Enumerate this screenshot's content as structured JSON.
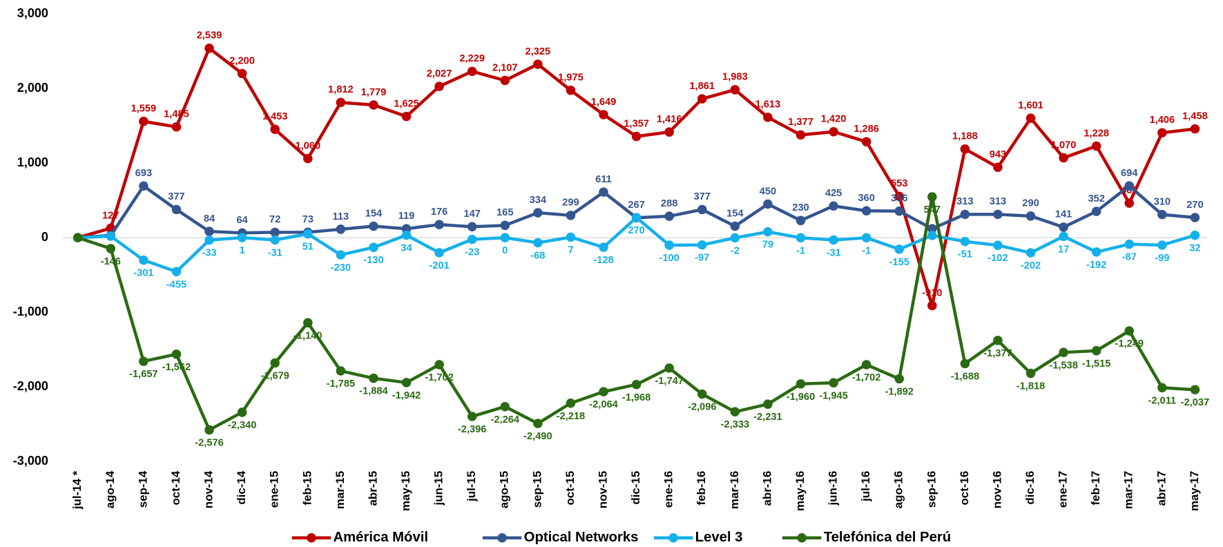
{
  "chart_data": {
    "type": "line",
    "categories": [
      "jul-14 *",
      "ago-14",
      "sep-14",
      "oct-14",
      "nov-14",
      "dic-14",
      "ene-15",
      "feb-15",
      "mar-15",
      "abr-15",
      "may-15",
      "jun-15",
      "jul-15",
      "ago-15",
      "sep-15",
      "oct-15",
      "nov-15",
      "dic-15",
      "ene-16",
      "feb-16",
      "mar-16",
      "abr-16",
      "may-16",
      "jun-16",
      "jul-16",
      "ago-16",
      "sep-16",
      "oct-16",
      "nov-16",
      "dic-16",
      "ene-17",
      "feb-17",
      "mar-17",
      "abr-17",
      "may-17"
    ],
    "ylim": [
      -3000,
      3000
    ],
    "yticks": [
      {
        "value": -3000,
        "label": "-3,000"
      },
      {
        "value": -2000,
        "label": "-2,000"
      },
      {
        "value": -1000,
        "label": "-1,000"
      },
      0,
      {
        "value": 1000,
        "label": "1,000"
      },
      {
        "value": 2000,
        "label": "2,000"
      },
      {
        "value": 3000,
        "label": "3,000"
      }
    ],
    "legend": "bottom",
    "series": [
      {
        "name": "América Móvil",
        "color": "#c00000",
        "values": [
          0,
          127,
          1559,
          1485,
          2539,
          2200,
          1453,
          1060,
          1812,
          1779,
          1625,
          2027,
          2229,
          2107,
          2325,
          1975,
          1649,
          1357,
          1416,
          1861,
          1983,
          1613,
          1377,
          1420,
          1286,
          553,
          -910,
          1188,
          943,
          1601,
          1070,
          1228,
          463,
          1406,
          1458
        ],
        "value_labels": [
          null,
          "127",
          "1,559",
          "1,485",
          "2,539",
          "2,200",
          "1,453",
          "1,060",
          "1,812",
          "1,779",
          "1,625",
          "2,027",
          "2,229",
          "2,107",
          "2,325",
          "1,975",
          "1,649",
          "1,357",
          "1,416",
          "1,861",
          "1,983",
          "1,613",
          "1,377",
          "1,420",
          "1,286",
          "553",
          "-910",
          "1,188",
          "943",
          "1,601",
          "1,070",
          "1,228",
          "463",
          "1,406",
          "1,458"
        ]
      },
      {
        "name": "Optical Networks",
        "color": "#35558f",
        "values": [
          0,
          30,
          693,
          377,
          84,
          64,
          72,
          73,
          113,
          154,
          119,
          176,
          147,
          165,
          334,
          299,
          611,
          267,
          288,
          377,
          154,
          450,
          230,
          425,
          360,
          356,
          120,
          313,
          313,
          290,
          141,
          352,
          694,
          310,
          270
        ],
        "value_labels": [
          null,
          null,
          "693",
          "377",
          "84",
          "64",
          "72",
          "73",
          "113",
          "154",
          "119",
          "176",
          "147",
          "165",
          "334",
          "299",
          "611",
          "267",
          "288",
          "377",
          "154",
          "450",
          "230",
          "425",
          "360",
          "356",
          null,
          "313",
          "313",
          "290",
          "141",
          "352",
          "694",
          "310",
          "270"
        ]
      },
      {
        "name": "Level 3",
        "color": "#15b0ea",
        "values": [
          0,
          20,
          -301,
          -455,
          -33,
          1,
          -31,
          51,
          -230,
          -130,
          34,
          -201,
          -23,
          0,
          -68,
          7,
          -128,
          270,
          -100,
          -97,
          -2,
          79,
          -1,
          -31,
          -1,
          -155,
          30,
          -51,
          -102,
          -202,
          17,
          -192,
          -87,
          -99,
          32
        ],
        "value_labels": [
          null,
          null,
          "-301",
          "-455",
          "-33",
          "1",
          "-31",
          "51",
          "-230",
          "-130",
          "34",
          "-201",
          "-23",
          "0",
          "-68",
          "7",
          "-128",
          "270",
          "-100",
          "-97",
          "-2",
          "79",
          "-1",
          "-31",
          "-1",
          "-155",
          null,
          "-51",
          "-102",
          "-202",
          "17",
          "-192",
          "-87",
          "-99",
          "32"
        ]
      },
      {
        "name": "Telefónica del Perú",
        "color": "#2b6a12",
        "values": [
          0,
          -146,
          -1657,
          -1562,
          -2576,
          -2340,
          -1679,
          -1140,
          -1785,
          -1884,
          -1942,
          -1702,
          -2396,
          -2264,
          -2490,
          -2218,
          -2064,
          -1968,
          -1747,
          -2096,
          -2333,
          -2231,
          -1960,
          -1945,
          -1702,
          -1892,
          547,
          -1688,
          -1377,
          -1818,
          -1538,
          -1515,
          -1249,
          -2011,
          -2037
        ],
        "value_labels": [
          null,
          "-146",
          "-1,657",
          "-1,562",
          "-2,576",
          "-2,340",
          "-1,679",
          "-1,140",
          "-1,785",
          "-1,884",
          "-1,942",
          "-1,702",
          "-2,396",
          "-2,264",
          "-2,490",
          "-2,218",
          "-2,064",
          "-1,968",
          "-1,747",
          "-2,096",
          "-2,333",
          "-2,231",
          "-1,960",
          "-1,945",
          "-1,702",
          "-1,892",
          "547",
          "-1,688",
          "-1,377",
          "-1,818",
          "-1,538",
          "-1,515",
          "-1,249",
          "-2,011",
          "-2,037"
        ]
      }
    ]
  }
}
